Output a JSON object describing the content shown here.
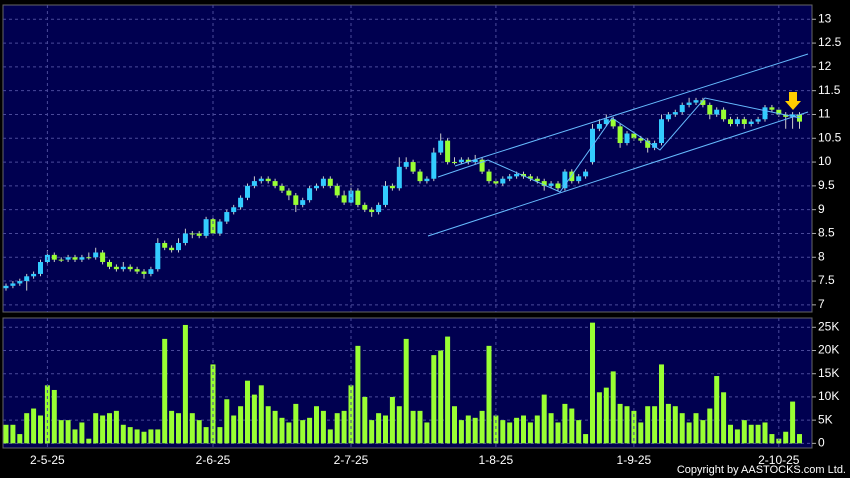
{
  "chart_data": [
    {
      "type": "candlestick",
      "up_color": "#33ccff",
      "down_color": "#99ff33",
      "grid": true,
      "ylim": [
        6.85,
        13.3
      ],
      "yticks": [
        7,
        7.5,
        8,
        8.5,
        9,
        9.5,
        10,
        10.5,
        11,
        11.5,
        12,
        12.5,
        13
      ],
      "ohlc": [
        [
          7.35,
          7.45,
          7.3,
          7.4
        ],
        [
          7.4,
          7.5,
          7.35,
          7.45
        ],
        [
          7.45,
          7.55,
          7.4,
          7.5
        ],
        [
          7.5,
          7.65,
          7.3,
          7.6
        ],
        [
          7.6,
          7.7,
          7.55,
          7.65
        ],
        [
          7.65,
          7.95,
          7.6,
          7.9
        ],
        [
          7.9,
          8.15,
          7.85,
          8.05
        ],
        [
          8.05,
          8.1,
          7.9,
          7.95
        ],
        [
          7.95,
          8.0,
          7.9,
          7.95
        ],
        [
          7.95,
          8.05,
          7.9,
          8.0
        ],
        [
          8.0,
          8.05,
          7.9,
          7.95
        ],
        [
          7.95,
          8.05,
          7.9,
          8.0
        ],
        [
          8.0,
          8.1,
          7.95,
          8.0
        ],
        [
          8.0,
          8.2,
          7.95,
          8.1
        ],
        [
          8.1,
          8.15,
          7.85,
          7.9
        ],
        [
          7.9,
          7.95,
          7.75,
          7.8
        ],
        [
          7.8,
          7.85,
          7.7,
          7.75
        ],
        [
          7.75,
          7.9,
          7.7,
          7.8
        ],
        [
          7.8,
          7.85,
          7.7,
          7.75
        ],
        [
          7.75,
          7.8,
          7.65,
          7.7
        ],
        [
          7.7,
          7.75,
          7.55,
          7.65
        ],
        [
          7.65,
          7.8,
          7.6,
          7.75
        ],
        [
          7.75,
          8.4,
          7.7,
          8.3
        ],
        [
          8.3,
          8.35,
          8.15,
          8.2
        ],
        [
          8.2,
          8.25,
          8.1,
          8.15
        ],
        [
          8.15,
          8.4,
          8.1,
          8.3
        ],
        [
          8.3,
          8.6,
          8.25,
          8.5
        ],
        [
          8.5,
          8.55,
          8.4,
          8.5
        ],
        [
          8.5,
          8.55,
          8.4,
          8.45
        ],
        [
          8.45,
          8.85,
          8.4,
          8.8
        ],
        [
          8.8,
          8.85,
          8.45,
          8.5
        ],
        [
          8.5,
          8.8,
          8.45,
          8.75
        ],
        [
          8.75,
          9.0,
          8.7,
          8.95
        ],
        [
          8.95,
          9.1,
          8.9,
          9.05
        ],
        [
          9.05,
          9.3,
          9.0,
          9.25
        ],
        [
          9.25,
          9.55,
          9.2,
          9.5
        ],
        [
          9.5,
          9.7,
          9.45,
          9.6
        ],
        [
          9.6,
          9.7,
          9.55,
          9.65
        ],
        [
          9.65,
          9.7,
          9.55,
          9.6
        ],
        [
          9.6,
          9.65,
          9.45,
          9.5
        ],
        [
          9.5,
          9.55,
          9.35,
          9.4
        ],
        [
          9.4,
          9.45,
          9.2,
          9.3
        ],
        [
          9.3,
          9.35,
          8.95,
          9.1
        ],
        [
          9.1,
          9.25,
          9.05,
          9.2
        ],
        [
          9.2,
          9.5,
          9.15,
          9.45
        ],
        [
          9.45,
          9.55,
          9.4,
          9.5
        ],
        [
          9.5,
          9.7,
          9.45,
          9.65
        ],
        [
          9.65,
          9.7,
          9.45,
          9.5
        ],
        [
          9.5,
          9.55,
          9.25,
          9.3
        ],
        [
          9.3,
          9.4,
          9.1,
          9.15
        ],
        [
          9.15,
          9.55,
          9.1,
          9.4
        ],
        [
          9.4,
          9.45,
          9.05,
          9.1
        ],
        [
          9.1,
          9.15,
          8.95,
          9.0
        ],
        [
          9.0,
          9.05,
          8.85,
          8.95
        ],
        [
          8.95,
          9.15,
          8.9,
          9.1
        ],
        [
          9.1,
          9.6,
          9.05,
          9.5
        ],
        [
          9.5,
          9.55,
          9.4,
          9.45
        ],
        [
          9.45,
          10.1,
          9.4,
          9.9
        ],
        [
          9.9,
          10.1,
          9.85,
          10.0
        ],
        [
          10.0,
          10.05,
          9.75,
          9.8
        ],
        [
          9.8,
          9.85,
          9.55,
          9.6
        ],
        [
          9.6,
          9.7,
          9.55,
          9.65
        ],
        [
          9.65,
          10.3,
          9.6,
          10.2
        ],
        [
          10.2,
          10.6,
          10.15,
          10.45
        ],
        [
          10.45,
          10.5,
          9.95,
          10.0
        ],
        [
          10.0,
          10.1,
          9.95,
          10.0
        ],
        [
          10.0,
          10.1,
          9.95,
          10.05
        ],
        [
          10.05,
          10.1,
          9.95,
          10.0
        ],
        [
          10.0,
          10.15,
          9.95,
          10.05
        ],
        [
          10.05,
          10.1,
          9.75,
          9.8
        ],
        [
          9.8,
          9.85,
          9.55,
          9.6
        ],
        [
          9.6,
          9.65,
          9.5,
          9.55
        ],
        [
          9.55,
          9.7,
          9.5,
          9.65
        ],
        [
          9.65,
          9.75,
          9.6,
          9.7
        ],
        [
          9.7,
          9.8,
          9.65,
          9.75
        ],
        [
          9.75,
          9.8,
          9.65,
          9.7
        ],
        [
          9.7,
          9.75,
          9.6,
          9.65
        ],
        [
          9.65,
          9.7,
          9.55,
          9.6
        ],
        [
          9.6,
          9.65,
          9.4,
          9.5
        ],
        [
          9.5,
          9.6,
          9.45,
          9.55
        ],
        [
          9.55,
          9.6,
          9.4,
          9.45
        ],
        [
          9.45,
          9.85,
          9.4,
          9.8
        ],
        [
          9.8,
          9.85,
          9.55,
          9.6
        ],
        [
          9.6,
          9.75,
          9.55,
          9.7
        ],
        [
          9.7,
          9.85,
          9.65,
          9.8
        ],
        [
          10.0,
          10.8,
          9.95,
          10.7
        ],
        [
          10.7,
          10.9,
          10.65,
          10.8
        ],
        [
          10.8,
          11.0,
          10.75,
          10.9
        ],
        [
          10.9,
          10.95,
          10.7,
          10.75
        ],
        [
          10.75,
          10.8,
          10.3,
          10.4
        ],
        [
          10.4,
          10.65,
          10.35,
          10.6
        ],
        [
          10.6,
          10.65,
          10.45,
          10.5
        ],
        [
          10.5,
          10.55,
          10.4,
          10.45
        ],
        [
          10.45,
          10.5,
          10.2,
          10.3
        ],
        [
          10.3,
          10.45,
          10.25,
          10.4
        ],
        [
          10.4,
          11.0,
          10.35,
          10.9
        ],
        [
          10.9,
          11.05,
          10.85,
          11.0
        ],
        [
          11.0,
          11.1,
          10.95,
          11.05
        ],
        [
          11.05,
          11.25,
          11.0,
          11.2
        ],
        [
          11.2,
          11.35,
          11.15,
          11.25
        ],
        [
          11.25,
          11.35,
          11.2,
          11.3
        ],
        [
          11.3,
          11.35,
          11.15,
          11.2
        ],
        [
          11.2,
          11.25,
          10.9,
          11.0
        ],
        [
          11.0,
          11.15,
          10.95,
          11.1
        ],
        [
          11.1,
          11.15,
          10.85,
          10.9
        ],
        [
          10.9,
          10.95,
          10.75,
          10.8
        ],
        [
          10.8,
          10.95,
          10.75,
          10.9
        ],
        [
          10.9,
          10.95,
          10.7,
          10.8
        ],
        [
          10.8,
          10.9,
          10.75,
          10.85
        ],
        [
          10.85,
          10.95,
          10.8,
          10.9
        ],
        [
          10.9,
          11.2,
          10.85,
          11.15
        ],
        [
          11.15,
          11.2,
          11.05,
          11.1
        ],
        [
          11.1,
          11.15,
          10.95,
          11.0
        ],
        [
          11.0,
          11.05,
          10.7,
          10.95
        ],
        [
          10.95,
          11.05,
          10.7,
          11.0
        ],
        [
          11.0,
          11.05,
          10.7,
          10.85
        ]
      ]
    },
    {
      "type": "bar",
      "color": "#99ff33",
      "grid": true,
      "ylim": [
        -1000,
        27000
      ],
      "yticks": [
        0,
        {
          "value": 5000,
          "label": "5K"
        },
        {
          "value": 10000,
          "label": "10K"
        },
        {
          "value": 15000,
          "label": "15K"
        },
        {
          "value": 20000,
          "label": "20K"
        },
        {
          "value": 25000,
          "label": "25K"
        }
      ],
      "categories": [
        null,
        null,
        null,
        null,
        null,
        null,
        "2-5-25",
        null,
        null,
        null,
        null,
        null,
        null,
        null,
        null,
        null,
        null,
        null,
        null,
        null,
        null,
        null,
        null,
        null,
        null,
        null,
        null,
        null,
        null,
        null,
        "2-6-25",
        null,
        null,
        null,
        null,
        null,
        null,
        null,
        null,
        null,
        null,
        null,
        null,
        null,
        null,
        null,
        null,
        null,
        null,
        null,
        "2-7-25",
        null,
        null,
        null,
        null,
        null,
        null,
        null,
        null,
        null,
        null,
        null,
        null,
        null,
        null,
        null,
        null,
        null,
        null,
        null,
        null,
        "1-8-25",
        null,
        null,
        null,
        null,
        null,
        null,
        null,
        null,
        null,
        null,
        null,
        null,
        null,
        null,
        null,
        null,
        null,
        null,
        null,
        "1-9-25",
        null,
        null,
        null,
        null,
        null,
        null,
        null,
        null,
        null,
        null,
        null,
        null,
        null,
        null,
        null,
        null,
        null,
        null,
        null,
        null,
        "2-10-25",
        null,
        null,
        null
      ],
      "values": [
        4000,
        4000,
        2000,
        6500,
        7500,
        6000,
        12500,
        11500,
        5000,
        5000,
        3000,
        4500,
        1000,
        6500,
        6000,
        6500,
        7000,
        4000,
        3500,
        3000,
        2500,
        3000,
        3000,
        22500,
        7000,
        6500,
        25500,
        6500,
        5000,
        3500,
        17000,
        3500,
        9500,
        6000,
        8000,
        13500,
        10500,
        12500,
        8000,
        7000,
        5500,
        4500,
        8500,
        5000,
        5500,
        8000,
        7000,
        3000,
        6500,
        7000,
        12500,
        21000,
        10000,
        5000,
        6500,
        6000,
        10000,
        8000,
        22500,
        7000,
        7000,
        4500,
        19000,
        20000,
        23000,
        8000,
        5000,
        6000,
        5500,
        7000,
        21000,
        6000,
        5000,
        4500,
        5500,
        6000,
        4500,
        6000,
        10500,
        6500,
        4500,
        8500,
        7500,
        5000,
        2000,
        26000,
        11000,
        12000,
        15500,
        8500,
        8000,
        7000,
        4500,
        8000,
        8000,
        17000,
        8500,
        8000,
        6500,
        4500,
        6500,
        5000,
        7500,
        14500,
        11000,
        4000,
        3000,
        5000,
        4000,
        4000,
        4500,
        2000,
        1000,
        2500,
        9000,
        2000
      ]
    }
  ],
  "footer": "Copyright by AASTOCKS.com Ltd."
}
